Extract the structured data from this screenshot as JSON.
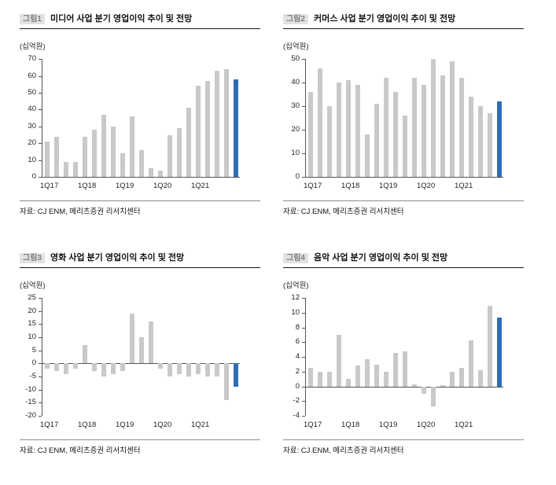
{
  "labels": {
    "source": "자료: CJ ENM, 메리츠증권 리서치센터"
  },
  "colors": {
    "bar": "#c9c9c9",
    "forecast_bar": "#2f6eb5",
    "axis": "#555555",
    "title_rule": "#1a1a1a",
    "source_rule": "#8c8c8c",
    "badge_bg": "#e2e2e2",
    "badge_text": "#7f7f7f"
  },
  "chart_data": [
    {
      "type": "bar",
      "badge": "그림1",
      "title": "미디어 사업 분기 영업이익 추이 및 전망",
      "ylabel": "(십억원)",
      "values": [
        21,
        24,
        9,
        9,
        24,
        28,
        37,
        30,
        14,
        36,
        16,
        5,
        4,
        25,
        29,
        41,
        54,
        57,
        63,
        64,
        58
      ],
      "forecast_index": 20,
      "ylim": [
        0,
        70
      ],
      "yticks": [
        0,
        10,
        20,
        30,
        40,
        50,
        60,
        70
      ],
      "xticks": [
        "1Q17",
        "1Q18",
        "1Q19",
        "1Q20",
        "1Q21"
      ],
      "xtick_indices": [
        0,
        4,
        8,
        12,
        16
      ],
      "legend": "none",
      "grid": false
    },
    {
      "type": "bar",
      "badge": "그림2",
      "title": "커머스 사업 분기 영업이익 추이 및 전망",
      "ylabel": "(십억원)",
      "values": [
        36,
        46,
        30,
        40,
        41,
        39,
        18,
        31,
        42,
        36,
        26,
        42,
        39,
        50,
        43,
        49,
        42,
        34,
        30,
        27,
        32
      ],
      "forecast_index": 20,
      "ylim": [
        0,
        50
      ],
      "yticks": [
        0,
        10,
        20,
        30,
        40,
        50
      ],
      "xticks": [
        "1Q17",
        "1Q18",
        "1Q19",
        "1Q20",
        "1Q21"
      ],
      "xtick_indices": [
        0,
        4,
        8,
        12,
        16
      ],
      "legend": "none",
      "grid": false
    },
    {
      "type": "bar",
      "badge": "그림3",
      "title": "영화 사업 분기 영업이익 추이 및 전망",
      "ylabel": "(십억원)",
      "values": [
        -2,
        -3,
        -4,
        -2,
        7,
        -3,
        -5,
        -4,
        -3,
        19,
        10,
        16,
        -2,
        -5,
        -4,
        -5,
        -4,
        -5,
        -5,
        -14,
        -9
      ],
      "forecast_index": 20,
      "ylim": [
        -20,
        25
      ],
      "yticks": [
        -20,
        -15,
        -10,
        -5,
        0,
        5,
        10,
        15,
        20,
        25
      ],
      "xticks": [
        "1Q17",
        "1Q18",
        "1Q19",
        "1Q20",
        "1Q21"
      ],
      "xtick_indices": [
        0,
        4,
        8,
        12,
        16
      ],
      "legend": "none",
      "grid": false
    },
    {
      "type": "bar",
      "badge": "그림4",
      "title": "음악 사업 분기 영업이익 추이 및 전망",
      "ylabel": "(십억원)",
      "values": [
        2.5,
        2,
        2,
        7,
        1,
        2.8,
        3.7,
        3,
        2,
        4.5,
        4.8,
        0.3,
        -1,
        -2.7,
        0.2,
        2,
        2.5,
        6.3,
        2.2,
        11,
        9.4
      ],
      "forecast_index": 20,
      "ylim": [
        -4,
        12
      ],
      "yticks": [
        -4,
        -2,
        0,
        2,
        4,
        6,
        8,
        10,
        12
      ],
      "xticks": [
        "1Q17",
        "1Q18",
        "1Q19",
        "1Q20",
        "1Q21"
      ],
      "xtick_indices": [
        0,
        4,
        8,
        12,
        16
      ],
      "legend": "none",
      "grid": false
    }
  ]
}
